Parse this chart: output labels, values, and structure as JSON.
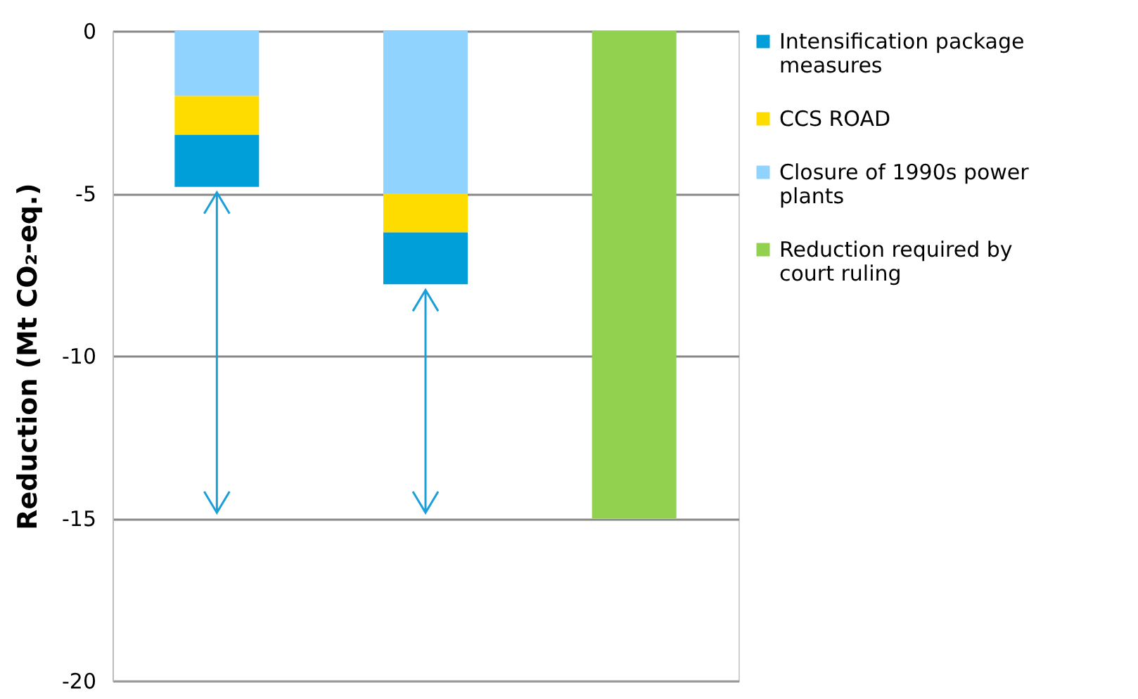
{
  "chart_data": {
    "type": "bar",
    "stacked": true,
    "ylabel": "Reduction (Mt CO₂-eq.)",
    "categories": [
      null,
      null,
      null
    ],
    "series": [
      {
        "name": "Reduction required by court ruling",
        "color": "#92d050",
        "values": [
          null,
          null,
          -15
        ]
      },
      {
        "name": "Closure of 1990s power plants",
        "color": "#8fd3fe",
        "values": [
          -2.0,
          -5.0,
          null
        ]
      },
      {
        "name": "CCS ROAD",
        "color": "#ffdc00",
        "values": [
          -1.2,
          -1.2,
          null
        ]
      },
      {
        "name": "Intensification package measures",
        "color": "#009fda",
        "values": [
          -1.6,
          -1.6,
          null
        ]
      }
    ],
    "ylim": [
      -20,
      0
    ],
    "yticks": [
      -20,
      -15,
      -10,
      -5,
      0
    ],
    "grid": "y",
    "legend": "right",
    "tick_labels": "y"
  }
}
